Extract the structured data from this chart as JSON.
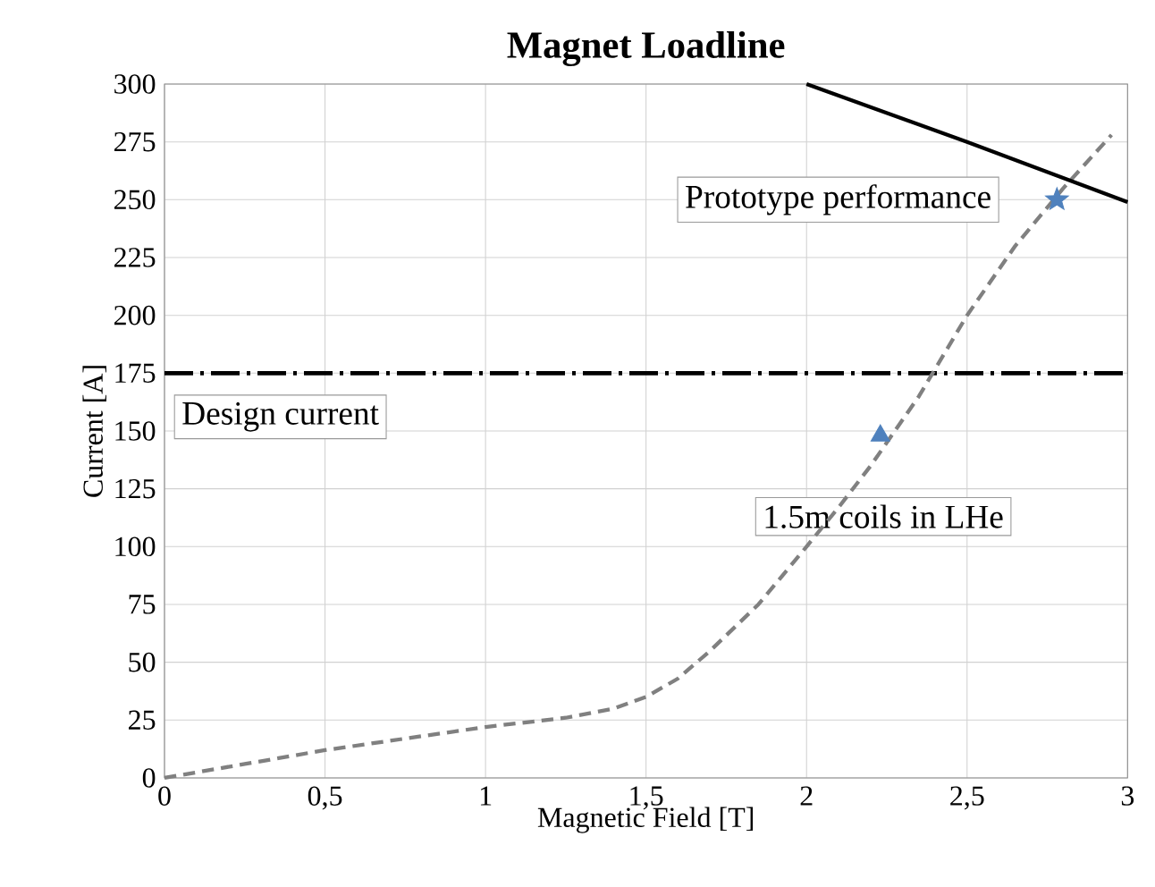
{
  "chart_data": {
    "type": "line",
    "title": "Magnet Loadline",
    "xlabel": "Magnetic Field [T]",
    "ylabel": "Current [A]",
    "xlim": [
      0,
      3
    ],
    "ylim": [
      0,
      300
    ],
    "xticks": [
      0,
      {
        "value": 0.5,
        "label": "0,5"
      },
      1,
      {
        "value": 1.5,
        "label": "1,5"
      },
      2,
      {
        "value": 2.5,
        "label": "2,5"
      },
      3
    ],
    "yticks": [
      0,
      25,
      50,
      75,
      100,
      125,
      150,
      175,
      200,
      225,
      250,
      275,
      300
    ],
    "grid": true,
    "series": [
      {
        "color": "#808080",
        "line_style": "dashed",
        "marker": "none",
        "x": [
          0,
          0.25,
          0.5,
          0.75,
          1,
          1.25,
          1.4,
          1.5,
          1.6,
          1.7,
          1.85,
          2,
          2.1,
          2.2,
          2.35,
          2.5,
          2.65,
          2.8,
          2.95
        ],
        "values": [
          0,
          6,
          12,
          17,
          22,
          26,
          30,
          35,
          43,
          55,
          75,
          100,
          117,
          135,
          165,
          200,
          230,
          255,
          278
        ]
      },
      {
        "color": "#000000",
        "line_style": "solid",
        "marker": "none",
        "x": [
          2,
          2.5,
          3
        ],
        "values": [
          300,
          275,
          249
        ]
      },
      {
        "type": "scatter",
        "color": "#4f81bd",
        "marker": "triangle",
        "x": [
          2.23
        ],
        "values": [
          148
        ]
      },
      {
        "type": "scatter",
        "color": "#4f81bd",
        "marker": "star",
        "x": [
          2.78
        ],
        "values": [
          250
        ]
      }
    ],
    "ref_lines": [
      {
        "axis": "y",
        "value": 175,
        "label": "Design current",
        "color": "#000000",
        "line_style": "dashdot"
      }
    ],
    "annotations": [
      "Prototype performance",
      "1.5m coils in LHe"
    ]
  }
}
